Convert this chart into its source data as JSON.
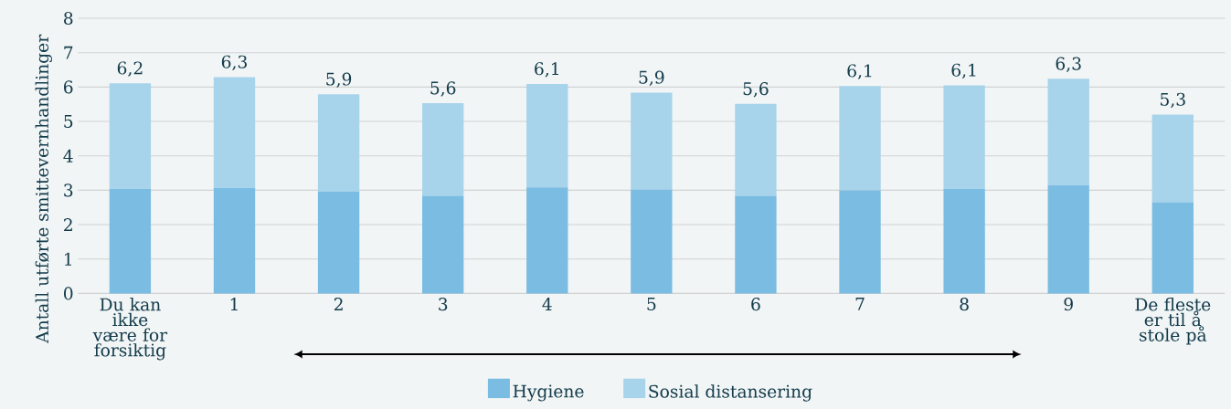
{
  "chart_data": {
    "type": "bar",
    "stacked": true,
    "ylabel": "Antall utførte smittevernhandlinger",
    "categories": [
      "Du kan ikke være for forsiktig",
      "1",
      "2",
      "3",
      "4",
      "5",
      "6",
      "7",
      "8",
      "9",
      "De fleste er til å stole på"
    ],
    "series": [
      {
        "name": "Hygiene",
        "color": "#7bbce2",
        "values": [
          3.04,
          3.07,
          2.96,
          2.84,
          3.08,
          3.02,
          2.84,
          3.0,
          3.04,
          3.15,
          2.65
        ]
      },
      {
        "name": "Sosial distansering",
        "color": "#a7d3eb",
        "values": [
          3.07,
          3.22,
          2.83,
          2.69,
          3.01,
          2.82,
          2.67,
          3.03,
          3.01,
          3.09,
          2.55
        ]
      }
    ],
    "totals": [
      "6,2",
      "6,3",
      "5,9",
      "5,6",
      "6,1",
      "5,9",
      "5,6",
      "6,1",
      "6,1",
      "6,3",
      "5,3"
    ],
    "ylim": [
      0,
      8
    ],
    "yticks": [
      0,
      1,
      2,
      3,
      4,
      5,
      6,
      7,
      8
    ],
    "grid": "y",
    "legend": "bottom"
  }
}
